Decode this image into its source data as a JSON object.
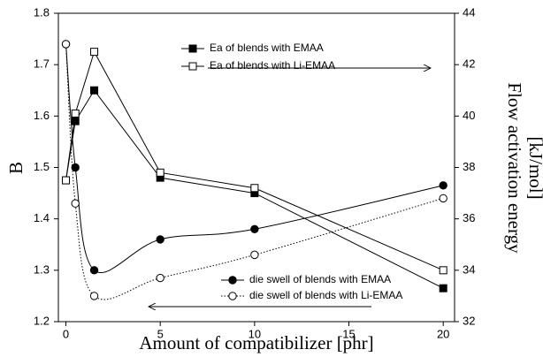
{
  "chart_data": {
    "type": "line",
    "x_label": "Amount of compatibilizer [phr]",
    "y_label": "B",
    "y2_label": [
      "Flow activation energy",
      "[kJ/mol]"
    ],
    "xlim": [
      -0.4,
      20.6
    ],
    "xticks": [
      0,
      5,
      10,
      15,
      20
    ],
    "ylim": [
      1.2,
      1.8
    ],
    "yticks": [
      1.2,
      1.3,
      1.4,
      1.5,
      1.6,
      1.7,
      1.8
    ],
    "y2lim": [
      32,
      44
    ],
    "y2ticks": [
      32,
      34,
      36,
      38,
      40,
      42,
      44
    ],
    "x": [
      0,
      0.5,
      1.5,
      5,
      10,
      20
    ],
    "series": [
      {
        "name": "Ea of blends with EMAA",
        "color": "#000000",
        "marker": "square",
        "filled": true,
        "dash": "solid",
        "axis": "y2",
        "values": [
          37.5,
          39.8,
          41.0,
          37.6,
          37.0,
          33.3
        ]
      },
      {
        "name": "Ea of blends with Li-EMAA",
        "color": "#000000",
        "marker": "square",
        "filled": false,
        "dash": "solid",
        "axis": "y2",
        "values": [
          37.5,
          40.1,
          42.5,
          37.8,
          37.2,
          34.0
        ]
      },
      {
        "name": "die swell of blends with EMAA",
        "color": "#000000",
        "marker": "circle",
        "filled": true,
        "dash": "solid",
        "axis": "y",
        "smooth": true,
        "values": [
          1.74,
          1.5,
          1.3,
          1.36,
          1.38,
          1.465
        ]
      },
      {
        "name": "die swell of blends with Li-EMAA",
        "color": "#000000",
        "marker": "circle",
        "filled": false,
        "dash": "dotted",
        "axis": "y",
        "smooth": true,
        "values": [
          1.74,
          1.43,
          1.25,
          1.285,
          1.33,
          1.44
        ]
      }
    ]
  }
}
